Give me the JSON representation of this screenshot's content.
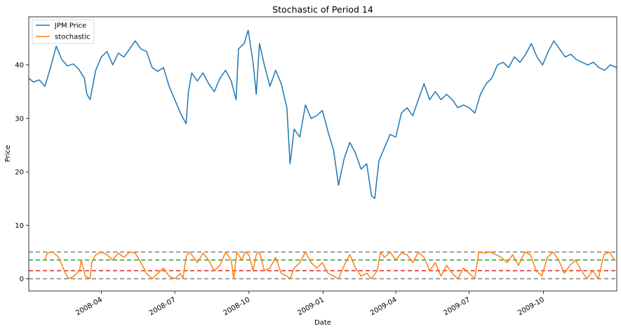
{
  "chart_data": {
    "type": "line",
    "title": "Stochastic of Period 14",
    "xlabel": "Date",
    "ylabel": "Price",
    "xlim": [
      "2008-01-02",
      "2009-12-31"
    ],
    "ylim": [
      -2.3,
      49.0
    ],
    "yticks": [
      0,
      10,
      20,
      30,
      40
    ],
    "xticks": [
      {
        "date": "2008-04-01",
        "label": "2008-04"
      },
      {
        "date": "2008-07-01",
        "label": "2008-07"
      },
      {
        "date": "2008-10-01",
        "label": "2008-10"
      },
      {
        "date": "2009-01-01",
        "label": "2009-01"
      },
      {
        "date": "2009-04-01",
        "label": "2009-04"
      },
      {
        "date": "2009-07-01",
        "label": "2009-07"
      },
      {
        "date": "2009-10-01",
        "label": "2009-10"
      }
    ],
    "legend_position": "top-left",
    "grid": false,
    "series": [
      {
        "name": "JPM Price",
        "color": "#1f77b4",
        "points": [
          [
            "2008-01-02",
            37.5
          ],
          [
            "2008-01-08",
            36.8
          ],
          [
            "2008-01-15",
            37.2
          ],
          [
            "2008-01-22",
            36.0
          ],
          [
            "2008-01-29",
            39.5
          ],
          [
            "2008-02-05",
            43.5
          ],
          [
            "2008-02-12",
            41.0
          ],
          [
            "2008-02-19",
            39.8
          ],
          [
            "2008-02-26",
            40.2
          ],
          [
            "2008-03-04",
            39.2
          ],
          [
            "2008-03-11",
            37.5
          ],
          [
            "2008-03-14",
            34.5
          ],
          [
            "2008-03-18",
            33.5
          ],
          [
            "2008-03-25",
            39.0
          ],
          [
            "2008-04-01",
            41.5
          ],
          [
            "2008-04-08",
            42.5
          ],
          [
            "2008-04-15",
            40.0
          ],
          [
            "2008-04-22",
            42.2
          ],
          [
            "2008-04-29",
            41.5
          ],
          [
            "2008-05-06",
            43.0
          ],
          [
            "2008-05-13",
            44.5
          ],
          [
            "2008-05-20",
            43.0
          ],
          [
            "2008-05-27",
            42.5
          ],
          [
            "2008-06-03",
            39.5
          ],
          [
            "2008-06-10",
            38.8
          ],
          [
            "2008-06-17",
            39.5
          ],
          [
            "2008-06-24",
            36.0
          ],
          [
            "2008-07-01",
            33.5
          ],
          [
            "2008-07-08",
            31.0
          ],
          [
            "2008-07-15",
            29.0
          ],
          [
            "2008-07-18",
            35.0
          ],
          [
            "2008-07-22",
            38.5
          ],
          [
            "2008-07-29",
            37.0
          ],
          [
            "2008-08-05",
            38.5
          ],
          [
            "2008-08-12",
            36.5
          ],
          [
            "2008-08-19",
            35.0
          ],
          [
            "2008-08-26",
            37.5
          ],
          [
            "2008-09-02",
            39.0
          ],
          [
            "2008-09-09",
            37.0
          ],
          [
            "2008-09-15",
            33.5
          ],
          [
            "2008-09-18",
            43.0
          ],
          [
            "2008-09-25",
            44.0
          ],
          [
            "2008-09-30",
            46.5
          ],
          [
            "2008-10-06",
            40.5
          ],
          [
            "2008-10-10",
            34.5
          ],
          [
            "2008-10-14",
            44.0
          ],
          [
            "2008-10-20",
            40.0
          ],
          [
            "2008-10-27",
            36.0
          ],
          [
            "2008-11-03",
            39.0
          ],
          [
            "2008-11-10",
            36.5
          ],
          [
            "2008-11-17",
            32.0
          ],
          [
            "2008-11-21",
            21.5
          ],
          [
            "2008-11-26",
            28.0
          ],
          [
            "2008-12-03",
            26.5
          ],
          [
            "2008-12-10",
            32.5
          ],
          [
            "2008-12-17",
            30.0
          ],
          [
            "2008-12-24",
            30.5
          ],
          [
            "2008-12-31",
            31.5
          ],
          [
            "2009-01-07",
            27.5
          ],
          [
            "2009-01-14",
            24.0
          ],
          [
            "2009-01-20",
            17.5
          ],
          [
            "2009-01-27",
            22.5
          ],
          [
            "2009-02-03",
            25.5
          ],
          [
            "2009-02-10",
            23.5
          ],
          [
            "2009-02-17",
            20.5
          ],
          [
            "2009-02-24",
            21.5
          ],
          [
            "2009-03-02",
            15.5
          ],
          [
            "2009-03-06",
            15.0
          ],
          [
            "2009-03-11",
            22.0
          ],
          [
            "2009-03-18",
            24.5
          ],
          [
            "2009-03-25",
            27.0
          ],
          [
            "2009-04-01",
            26.5
          ],
          [
            "2009-04-08",
            31.0
          ],
          [
            "2009-04-15",
            32.0
          ],
          [
            "2009-04-22",
            30.5
          ],
          [
            "2009-04-29",
            33.5
          ],
          [
            "2009-05-06",
            36.5
          ],
          [
            "2009-05-13",
            33.5
          ],
          [
            "2009-05-20",
            35.0
          ],
          [
            "2009-05-27",
            33.5
          ],
          [
            "2009-06-03",
            34.5
          ],
          [
            "2009-06-10",
            33.5
          ],
          [
            "2009-06-17",
            32.0
          ],
          [
            "2009-06-24",
            32.5
          ],
          [
            "2009-07-01",
            32.0
          ],
          [
            "2009-07-08",
            31.0
          ],
          [
            "2009-07-15",
            34.5
          ],
          [
            "2009-07-22",
            36.5
          ],
          [
            "2009-07-29",
            37.5
          ],
          [
            "2009-08-05",
            40.0
          ],
          [
            "2009-08-12",
            40.5
          ],
          [
            "2009-08-19",
            39.5
          ],
          [
            "2009-08-26",
            41.5
          ],
          [
            "2009-09-02",
            40.5
          ],
          [
            "2009-09-09",
            42.0
          ],
          [
            "2009-09-16",
            44.0
          ],
          [
            "2009-09-23",
            41.5
          ],
          [
            "2009-09-30",
            40.0
          ],
          [
            "2009-10-07",
            42.5
          ],
          [
            "2009-10-14",
            44.5
          ],
          [
            "2009-10-21",
            43.0
          ],
          [
            "2009-10-28",
            41.5
          ],
          [
            "2009-11-04",
            42.0
          ],
          [
            "2009-11-11",
            41.0
          ],
          [
            "2009-11-18",
            40.5
          ],
          [
            "2009-11-25",
            40.0
          ],
          [
            "2009-12-02",
            40.5
          ],
          [
            "2009-12-09",
            39.5
          ],
          [
            "2009-12-16",
            39.0
          ],
          [
            "2009-12-23",
            40.0
          ],
          [
            "2009-12-31",
            39.5
          ]
        ]
      },
      {
        "name": "stochastic",
        "color": "#ff7f0e",
        "points": [
          [
            "2008-01-22",
            3.5
          ],
          [
            "2008-01-25",
            4.8
          ],
          [
            "2008-02-01",
            5.0
          ],
          [
            "2008-02-08",
            4.0
          ],
          [
            "2008-02-15",
            1.5
          ],
          [
            "2008-02-20",
            0.0
          ],
          [
            "2008-02-27",
            0.5
          ],
          [
            "2008-03-05",
            1.5
          ],
          [
            "2008-03-07",
            3.5
          ],
          [
            "2008-03-12",
            0.5
          ],
          [
            "2008-03-18",
            0.0
          ],
          [
            "2008-03-20",
            3.0
          ],
          [
            "2008-03-25",
            4.5
          ],
          [
            "2008-04-01",
            5.0
          ],
          [
            "2008-04-08",
            4.5
          ],
          [
            "2008-04-15",
            3.5
          ],
          [
            "2008-04-22",
            4.8
          ],
          [
            "2008-04-29",
            4.0
          ],
          [
            "2008-05-06",
            5.0
          ],
          [
            "2008-05-13",
            4.8
          ],
          [
            "2008-05-20",
            3.0
          ],
          [
            "2008-05-27",
            1.0
          ],
          [
            "2008-06-03",
            0.0
          ],
          [
            "2008-06-10",
            1.0
          ],
          [
            "2008-06-17",
            2.0
          ],
          [
            "2008-06-24",
            0.5
          ],
          [
            "2008-07-01",
            0.0
          ],
          [
            "2008-07-08",
            1.0
          ],
          [
            "2008-07-11",
            0.0
          ],
          [
            "2008-07-15",
            4.0
          ],
          [
            "2008-07-18",
            5.0
          ],
          [
            "2008-07-22",
            4.5
          ],
          [
            "2008-07-29",
            3.0
          ],
          [
            "2008-08-05",
            4.8
          ],
          [
            "2008-08-12",
            3.5
          ],
          [
            "2008-08-19",
            1.5
          ],
          [
            "2008-08-26",
            2.5
          ],
          [
            "2008-09-02",
            5.0
          ],
          [
            "2008-09-09",
            3.5
          ],
          [
            "2008-09-12",
            0.0
          ],
          [
            "2008-09-16",
            5.0
          ],
          [
            "2008-09-22",
            3.5
          ],
          [
            "2008-09-26",
            5.0
          ],
          [
            "2008-10-01",
            4.5
          ],
          [
            "2008-10-06",
            1.5
          ],
          [
            "2008-10-10",
            4.5
          ],
          [
            "2008-10-14",
            5.0
          ],
          [
            "2008-10-20",
            1.5
          ],
          [
            "2008-10-27",
            2.0
          ],
          [
            "2008-11-03",
            4.0
          ],
          [
            "2008-11-10",
            1.0
          ],
          [
            "2008-11-17",
            0.5
          ],
          [
            "2008-11-21",
            0.0
          ],
          [
            "2008-11-26",
            2.0
          ],
          [
            "2008-12-03",
            3.0
          ],
          [
            "2008-12-10",
            5.0
          ],
          [
            "2008-12-17",
            3.0
          ],
          [
            "2008-12-24",
            2.0
          ],
          [
            "2008-12-31",
            3.0
          ],
          [
            "2009-01-07",
            1.0
          ],
          [
            "2009-01-14",
            0.5
          ],
          [
            "2009-01-20",
            0.0
          ],
          [
            "2009-01-27",
            2.5
          ],
          [
            "2009-02-03",
            4.5
          ],
          [
            "2009-02-10",
            2.0
          ],
          [
            "2009-02-17",
            0.5
          ],
          [
            "2009-02-24",
            1.0
          ],
          [
            "2009-03-02",
            0.0
          ],
          [
            "2009-03-09",
            1.5
          ],
          [
            "2009-03-13",
            5.0
          ],
          [
            "2009-03-18",
            4.0
          ],
          [
            "2009-03-25",
            5.0
          ],
          [
            "2009-04-01",
            3.5
          ],
          [
            "2009-04-08",
            4.8
          ],
          [
            "2009-04-15",
            4.5
          ],
          [
            "2009-04-22",
            3.0
          ],
          [
            "2009-04-29",
            5.0
          ],
          [
            "2009-05-06",
            4.0
          ],
          [
            "2009-05-13",
            1.5
          ],
          [
            "2009-05-20",
            3.0
          ],
          [
            "2009-05-27",
            0.5
          ],
          [
            "2009-06-03",
            2.5
          ],
          [
            "2009-06-10",
            1.0
          ],
          [
            "2009-06-17",
            0.0
          ],
          [
            "2009-06-24",
            2.0
          ],
          [
            "2009-07-01",
            1.0
          ],
          [
            "2009-07-08",
            0.0
          ],
          [
            "2009-07-13",
            5.0
          ],
          [
            "2009-07-20",
            4.8
          ],
          [
            "2009-07-27",
            5.0
          ],
          [
            "2009-08-03",
            4.5
          ],
          [
            "2009-08-10",
            4.0
          ],
          [
            "2009-08-17",
            3.0
          ],
          [
            "2009-08-24",
            4.5
          ],
          [
            "2009-08-31",
            2.5
          ],
          [
            "2009-09-08",
            5.0
          ],
          [
            "2009-09-15",
            4.5
          ],
          [
            "2009-09-22",
            1.5
          ],
          [
            "2009-09-29",
            0.5
          ],
          [
            "2009-10-06",
            4.0
          ],
          [
            "2009-10-13",
            5.0
          ],
          [
            "2009-10-20",
            3.5
          ],
          [
            "2009-10-27",
            1.0
          ],
          [
            "2009-11-03",
            2.5
          ],
          [
            "2009-11-10",
            3.5
          ],
          [
            "2009-11-17",
            1.5
          ],
          [
            "2009-11-24",
            0.0
          ],
          [
            "2009-12-01",
            1.5
          ],
          [
            "2009-12-08",
            0.0
          ],
          [
            "2009-12-15",
            4.5
          ],
          [
            "2009-12-22",
            5.0
          ],
          [
            "2009-12-28",
            3.5
          ]
        ]
      }
    ],
    "hlines": [
      {
        "y": 5.0,
        "color": "#808080",
        "style": "dashed"
      },
      {
        "y": 3.5,
        "color": "#2ca02c",
        "style": "dashed"
      },
      {
        "y": 1.5,
        "color": "#d62728",
        "style": "dashed"
      },
      {
        "y": 0.0,
        "color": "#808080",
        "style": "dashed"
      }
    ]
  }
}
